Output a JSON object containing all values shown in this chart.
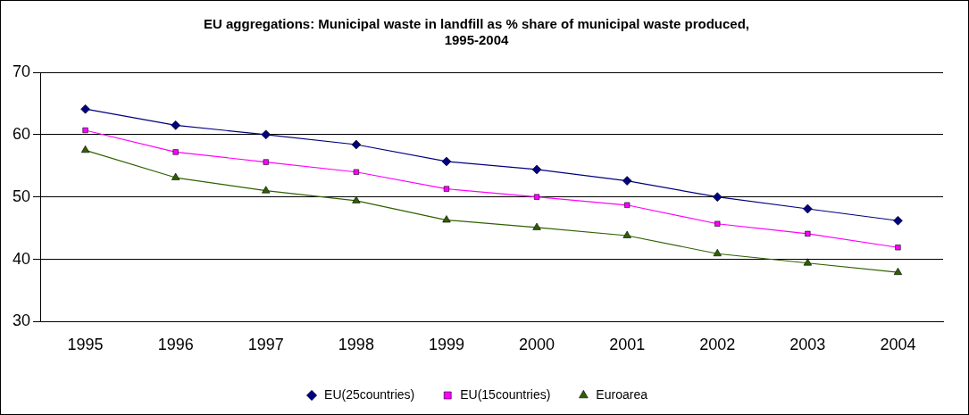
{
  "chart_data": {
    "type": "line",
    "title": "EU aggregations: Municipal waste in landfill as % share of municipal waste produced, 1995-2004",
    "categories": [
      "1995",
      "1996",
      "1997",
      "1998",
      "1999",
      "2000",
      "2001",
      "2002",
      "2003",
      "2004"
    ],
    "series": [
      {
        "name": "EU(25countries)",
        "color": "#000080",
        "marker": "diamond",
        "values": [
          64.1,
          61.5,
          60.0,
          58.4,
          55.7,
          54.4,
          52.6,
          50.0,
          48.1,
          46.2
        ]
      },
      {
        "name": "EU(15countries)",
        "color": "#ff00ff",
        "marker": "square",
        "values": [
          60.7,
          57.2,
          55.6,
          54.0,
          51.3,
          50.0,
          48.7,
          45.7,
          44.1,
          41.9
        ]
      },
      {
        "name": "Euroarea",
        "color": "#2f5f00",
        "marker": "triangle",
        "values": [
          57.5,
          53.1,
          51.0,
          49.4,
          46.3,
          45.1,
          43.8,
          40.9,
          39.4,
          37.9
        ]
      }
    ],
    "ylim": [
      30,
      70
    ],
    "yticks": [
      30,
      40,
      50,
      60,
      70
    ],
    "grid": "y",
    "legend": "bottom",
    "line_style": "solid"
  }
}
